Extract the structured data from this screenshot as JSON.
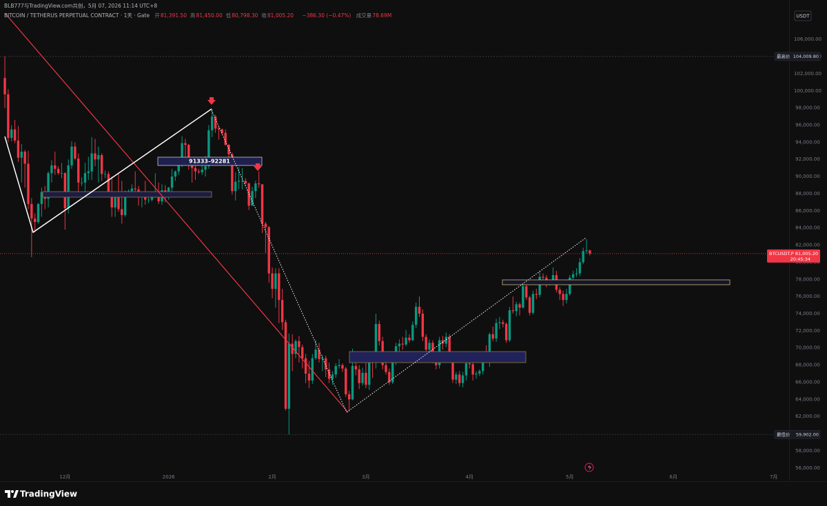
{
  "header": {
    "credit": "BLB777与TradingView.com共创，5月 07, 2026 11:14 UTC+8",
    "symbol": "BITCOIN / TETHERUS PERPETUAL CONTRACT · 1天 · Gate",
    "fields": [
      {
        "key": "开",
        "value": "81,391.50"
      },
      {
        "key": "高",
        "value": "81,450.00"
      },
      {
        "key": "低",
        "value": "80,798.30"
      },
      {
        "key": "收",
        "value": "81,005.20"
      }
    ],
    "change": "−386.30 (−0.47%)",
    "volume_label": "成交量",
    "volume": "78.69M"
  },
  "footer": {
    "brand": "TradingView"
  },
  "chart_data": {
    "type": "candlestick",
    "currency": "USDT",
    "up_color": "#089981",
    "down_color": "#f23645",
    "grid": false,
    "annotation": "91333–92281",
    "xlim": [
      -1.45,
      234.6
    ],
    "xticks": [
      {
        "value": 18,
        "label": "12月"
      },
      {
        "value": 49,
        "label": "2026"
      },
      {
        "value": 80,
        "label": "2月"
      },
      {
        "value": 108,
        "label": "3月"
      },
      {
        "value": 139,
        "label": "4月"
      },
      {
        "value": 169,
        "label": "5月"
      },
      {
        "value": 200,
        "label": "6月"
      },
      {
        "value": 230,
        "label": "7月"
      }
    ],
    "ylim": [
      55500,
      110600
    ],
    "yticks": [
      {
        "value": 56000,
        "label": "56,000.00"
      },
      {
        "value": 58000,
        "label": "58,000.00"
      },
      {
        "value": 60000,
        "label": "60,000.00"
      },
      {
        "value": 62000,
        "label": "62,000.00"
      },
      {
        "value": 64000,
        "label": "64,000.00"
      },
      {
        "value": 66000,
        "label": "66,000.00"
      },
      {
        "value": 68000,
        "label": "68,000.00"
      },
      {
        "value": 70000,
        "label": "70,000.00"
      },
      {
        "value": 72000,
        "label": "72,000.00"
      },
      {
        "value": 74000,
        "label": "74,000.00"
      },
      {
        "value": 76000,
        "label": "76,000.00"
      },
      {
        "value": 78000,
        "label": "78,000.00"
      },
      {
        "value": 80000,
        "label": "80,000.00"
      },
      {
        "value": 82000,
        "label": "82,000.00"
      },
      {
        "value": 84000,
        "label": "84,000.00"
      },
      {
        "value": 86000,
        "label": "86,000.00"
      },
      {
        "value": 88000,
        "label": "88,000.00"
      },
      {
        "value": 90000,
        "label": "90,000.00"
      },
      {
        "value": 92000,
        "label": "92,000.00"
      },
      {
        "value": 94000,
        "label": "94,000.00"
      },
      {
        "value": 96000,
        "label": "96,000.00"
      },
      {
        "value": 98000,
        "label": "98,000.00"
      },
      {
        "value": 100000,
        "label": "100,000.00"
      },
      {
        "value": 102000,
        "label": "102,000.00"
      },
      {
        "value": 104000,
        "label": "104,000.00"
      },
      {
        "value": 106000,
        "label": "106,000.00"
      }
    ],
    "price_lines": [
      {
        "name": "最高价",
        "value": 104009.8,
        "label": "104,009.80"
      },
      {
        "name": "最低价",
        "value": 59902,
        "label": "59,902.00"
      }
    ],
    "last_price": {
      "symbol": "BTCUSDT.P",
      "value": 81005.2,
      "label": "81,005.20",
      "countdown": "20:45:34"
    },
    "candles": [
      [
        101500,
        104009.8,
        98000,
        99600
      ],
      [
        99600,
        100200,
        94000,
        94500
      ],
      [
        94500,
        96000,
        94100,
        95500
      ],
      [
        95500,
        96600,
        93900,
        94200
      ],
      [
        94200,
        95900,
        91700,
        92200
      ],
      [
        92200,
        93800,
        89300,
        92900
      ],
      [
        92900,
        93100,
        88700,
        91500
      ],
      [
        91500,
        93000,
        86200,
        86800
      ],
      [
        86800,
        87500,
        80600,
        85100
      ],
      [
        85100,
        85700,
        83500,
        84700
      ],
      [
        84700,
        86900,
        84500,
        86800
      ],
      [
        86800,
        88700,
        85300,
        88200
      ],
      [
        88200,
        88900,
        86200,
        87400
      ],
      [
        87400,
        90600,
        86400,
        90400
      ],
      [
        90400,
        91900,
        89300,
        91300
      ],
      [
        91300,
        92900,
        90200,
        90900
      ],
      [
        90900,
        91200,
        90200,
        90400
      ],
      [
        90400,
        91600,
        89800,
        90400
      ],
      [
        90400,
        90500,
        83800,
        86300
      ],
      [
        86300,
        92000,
        85700,
        91300
      ],
      [
        91300,
        94100,
        90900,
        93500
      ],
      [
        93500,
        94000,
        91900,
        92100
      ],
      [
        92100,
        92700,
        88100,
        89300
      ],
      [
        89300,
        89900,
        88900,
        89300
      ],
      [
        89300,
        91600,
        87700,
        90400
      ],
      [
        90400,
        92300,
        89600,
        90600
      ],
      [
        90600,
        94600,
        89600,
        92700
      ],
      [
        92700,
        94400,
        91200,
        92000
      ],
      [
        92000,
        93500,
        89300,
        92500
      ],
      [
        92500,
        92700,
        89500,
        90300
      ],
      [
        90300,
        90700,
        89800,
        90300
      ],
      [
        90300,
        90600,
        87600,
        88200
      ],
      [
        88200,
        90000,
        85300,
        86400
      ],
      [
        86400,
        88200,
        85300,
        87800
      ],
      [
        87800,
        90300,
        85900,
        86200
      ],
      [
        86200,
        89500,
        84500,
        85500
      ],
      [
        85500,
        88400,
        85300,
        88100
      ],
      [
        88100,
        88500,
        87900,
        88300
      ],
      [
        88300,
        89100,
        87700,
        88600
      ],
      [
        88600,
        90600,
        87900,
        88500
      ],
      [
        88500,
        88900,
        86600,
        87600
      ],
      [
        87600,
        88000,
        86400,
        87700
      ],
      [
        87700,
        89500,
        86700,
        87300
      ],
      [
        87300,
        87900,
        86900,
        87300
      ],
      [
        87300,
        88000,
        87100,
        87800
      ],
      [
        87800,
        90400,
        87500,
        87900
      ],
      [
        87900,
        89300,
        86800,
        87100
      ],
      [
        87100,
        89100,
        86700,
        88400
      ],
      [
        88400,
        89000,
        87000,
        87600
      ],
      [
        87600,
        88800,
        87300,
        88700
      ],
      [
        88700,
        90900,
        88200,
        90000
      ],
      [
        90000,
        90700,
        89500,
        90600
      ],
      [
        90600,
        91700,
        90200,
        91400
      ],
      [
        91400,
        94700,
        91100,
        93900
      ],
      [
        93900,
        94400,
        91300,
        93700
      ],
      [
        93700,
        93800,
        90800,
        91300
      ],
      [
        91300,
        91500,
        89300,
        91000
      ],
      [
        91000,
        91800,
        89600,
        90600
      ],
      [
        90600,
        90900,
        90300,
        90500
      ],
      [
        90500,
        91600,
        90200,
        90800
      ],
      [
        90800,
        92400,
        90000,
        91200
      ],
      [
        91200,
        96000,
        90900,
        95400
      ],
      [
        95400,
        97900,
        94600,
        97000
      ],
      [
        97000,
        97200,
        95100,
        95600
      ],
      [
        95600,
        95900,
        94300,
        95500
      ],
      [
        95500,
        95600,
        94900,
        95100
      ],
      [
        95100,
        95500,
        93600,
        93700
      ],
      [
        93700,
        93800,
        91900,
        92600
      ],
      [
        92600,
        92800,
        87900,
        88300
      ],
      [
        88300,
        90500,
        87200,
        89400
      ],
      [
        89400,
        91100,
        88500,
        89500
      ],
      [
        89500,
        91000,
        88500,
        89500
      ],
      [
        89500,
        89800,
        88900,
        89200
      ],
      [
        89200,
        89300,
        86100,
        86600
      ],
      [
        86600,
        88800,
        86600,
        88300
      ],
      [
        88300,
        89500,
        87500,
        89200
      ],
      [
        89200,
        90600,
        88700,
        89100
      ],
      [
        89100,
        89100,
        83400,
        84500
      ],
      [
        84500,
        84700,
        81100,
        84100
      ],
      [
        84100,
        84200,
        77600,
        78700
      ],
      [
        78700,
        79400,
        75800,
        76900
      ],
      [
        76900,
        79300,
        74700,
        78700
      ],
      [
        78700,
        79300,
        72900,
        75600
      ],
      [
        75600,
        76900,
        72100,
        73000
      ],
      [
        73000,
        73300,
        62700,
        62900
      ],
      [
        62900,
        71700,
        59902,
        70500
      ],
      [
        70500,
        71600,
        67300,
        69300
      ],
      [
        69300,
        71000,
        68800,
        70800
      ],
      [
        70800,
        71400,
        68300,
        70100
      ],
      [
        70100,
        70400,
        67600,
        68800
      ],
      [
        68800,
        69300,
        65900,
        67000
      ],
      [
        67000,
        68500,
        65300,
        66200
      ],
      [
        66200,
        69300,
        65800,
        68800
      ],
      [
        68800,
        70900,
        68600,
        69800
      ],
      [
        69800,
        70600,
        68300,
        68700
      ],
      [
        68700,
        69200,
        67300,
        68800
      ],
      [
        68800,
        69100,
        66600,
        67500
      ],
      [
        67500,
        68300,
        65900,
        66400
      ],
      [
        66400,
        67300,
        65700,
        66900
      ],
      [
        66900,
        68200,
        66500,
        67900
      ],
      [
        67900,
        68700,
        67600,
        68000
      ],
      [
        68000,
        68200,
        67200,
        67600
      ],
      [
        67600,
        67800,
        64300,
        64600
      ],
      [
        64600,
        65000,
        62600,
        64000
      ],
      [
        64000,
        69900,
        63900,
        67900
      ],
      [
        67900,
        68300,
        66800,
        67500
      ],
      [
        67500,
        68000,
        65200,
        65900
      ],
      [
        65900,
        67700,
        65600,
        67100
      ],
      [
        67100,
        68300,
        65300,
        65700
      ],
      [
        65700,
        69300,
        65100,
        68800
      ],
      [
        68800,
        69200,
        66500,
        68300
      ],
      [
        68300,
        74000,
        67600,
        72800
      ],
      [
        72800,
        73200,
        70300,
        70800
      ],
      [
        70800,
        71300,
        67500,
        68000
      ],
      [
        68000,
        68400,
        66900,
        67200
      ],
      [
        67200,
        67600,
        65700,
        66000
      ],
      [
        66000,
        69000,
        65800,
        68400
      ],
      [
        68400,
        70600,
        68000,
        70200
      ],
      [
        70200,
        71000,
        69200,
        70500
      ],
      [
        70500,
        71300,
        69800,
        70400
      ],
      [
        70400,
        72100,
        70200,
        71200
      ],
      [
        71200,
        71600,
        70600,
        70900
      ],
      [
        70900,
        73100,
        70800,
        72700
      ],
      [
        72700,
        75300,
        72300,
        74800
      ],
      [
        74800,
        76000,
        73600,
        74000
      ],
      [
        74000,
        74500,
        70800,
        71300
      ],
      [
        71300,
        71600,
        69300,
        69800
      ],
      [
        69800,
        71000,
        69500,
        70600
      ],
      [
        70600,
        70900,
        68200,
        68600
      ],
      [
        68600,
        68900,
        67500,
        68000
      ],
      [
        68000,
        71300,
        67600,
        70900
      ],
      [
        70900,
        71400,
        69800,
        70500
      ],
      [
        70500,
        71800,
        70100,
        71300
      ],
      [
        71300,
        71600,
        68400,
        68800
      ],
      [
        68800,
        69100,
        65900,
        66300
      ],
      [
        66300,
        67200,
        65800,
        66900
      ],
      [
        66900,
        67300,
        65500,
        65900
      ],
      [
        65900,
        67200,
        65400,
        66800
      ],
      [
        66800,
        68400,
        66200,
        68200
      ],
      [
        68200,
        69200,
        67600,
        68100
      ],
      [
        68100,
        68400,
        66200,
        66900
      ],
      [
        66900,
        67300,
        66400,
        67000
      ],
      [
        67000,
        67500,
        66700,
        67300
      ],
      [
        67300,
        69300,
        66900,
        69000
      ],
      [
        69000,
        70300,
        68400,
        68800
      ],
      [
        68800,
        71800,
        67800,
        71600
      ],
      [
        71600,
        72500,
        70800,
        71100
      ],
      [
        71100,
        73400,
        70700,
        72900
      ],
      [
        72900,
        73600,
        72200,
        73000
      ],
      [
        73000,
        73300,
        72400,
        72800
      ],
      [
        72800,
        73000,
        70600,
        70900
      ],
      [
        70900,
        74800,
        70700,
        74400
      ],
      [
        74400,
        76000,
        74000,
        74300
      ],
      [
        74300,
        75400,
        73700,
        75100
      ],
      [
        75100,
        75300,
        73800,
        74700
      ],
      [
        74700,
        77900,
        74600,
        77200
      ],
      [
        77200,
        77500,
        75600,
        75900
      ],
      [
        75900,
        76100,
        73800,
        74100
      ],
      [
        74100,
        76700,
        73900,
        76300
      ],
      [
        76300,
        76900,
        75700,
        76200
      ],
      [
        76200,
        79000,
        75900,
        78300
      ],
      [
        78300,
        78700,
        77500,
        78200
      ],
      [
        78200,
        78500,
        77100,
        77500
      ],
      [
        77500,
        78000,
        77300,
        77600
      ],
      [
        77600,
        79400,
        77400,
        78500
      ],
      [
        78500,
        79000,
        76500,
        76800
      ],
      [
        76800,
        77100,
        75600,
        76300
      ],
      [
        76300,
        76700,
        74900,
        75600
      ],
      [
        75600,
        76900,
        75200,
        76300
      ],
      [
        76300,
        78500,
        76100,
        78200
      ],
      [
        78200,
        79000,
        78000,
        78600
      ],
      [
        78600,
        79300,
        78300,
        78700
      ],
      [
        78700,
        80500,
        78400,
        80000
      ],
      [
        80000,
        81700,
        79800,
        81300
      ],
      [
        81300,
        82700,
        81000,
        81391.5
      ],
      [
        81391.5,
        81450,
        80798.3,
        81005.2
      ]
    ]
  }
}
